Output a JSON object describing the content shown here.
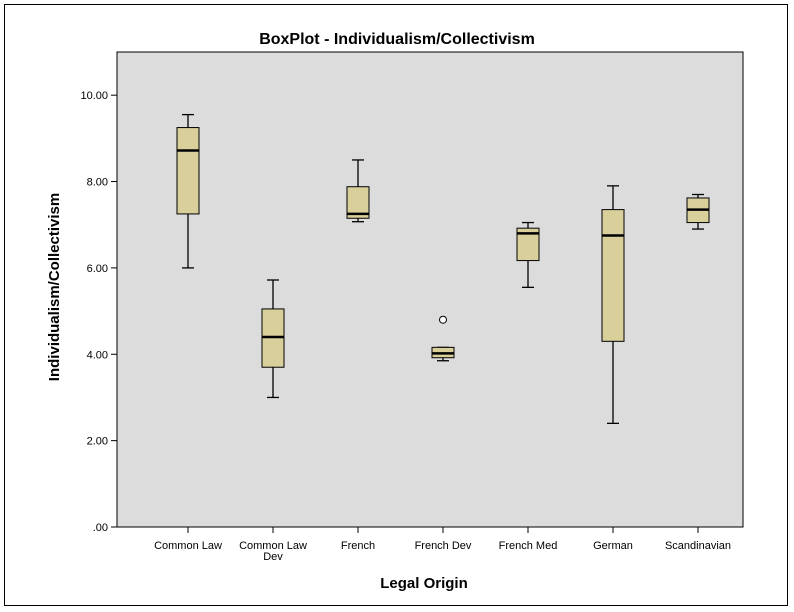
{
  "chart_data": {
    "type": "boxplot",
    "title": "BoxPlot - Individualism/Collectivism",
    "xlabel": "Legal Origin",
    "ylabel": "Individualism/Collectivism",
    "ylim": [
      0,
      11
    ],
    "yticks": [
      0,
      2,
      4,
      6,
      8,
      10
    ],
    "ytick_labels": [
      ".00",
      "2.00",
      "4.00",
      "6.00",
      "8.00",
      "10.00"
    ],
    "grid": false,
    "categories": [
      "Common Law",
      "Common Law Dev",
      "French",
      "French Dev",
      "French Med",
      "German",
      "Scandinavian"
    ],
    "category_label_lines": [
      [
        "Common Law"
      ],
      [
        "Common Law",
        "Dev"
      ],
      [
        "French"
      ],
      [
        "French Dev"
      ],
      [
        "French Med"
      ],
      [
        "German"
      ],
      [
        "Scandinavian"
      ]
    ],
    "boxes": [
      {
        "category": "Common Law",
        "min": 6.0,
        "q1": 7.25,
        "median": 8.72,
        "q3": 9.25,
        "max": 9.55,
        "outliers": []
      },
      {
        "category": "Common Law Dev",
        "min": 3.0,
        "q1": 3.7,
        "median": 4.4,
        "q3": 5.05,
        "max": 5.72,
        "outliers": []
      },
      {
        "category": "French",
        "min": 7.07,
        "q1": 7.15,
        "median": 7.25,
        "q3": 7.88,
        "max": 8.5,
        "outliers": []
      },
      {
        "category": "French Dev",
        "min": 3.85,
        "q1": 3.92,
        "median": 4.02,
        "q3": 4.16,
        "max": 4.16,
        "outliers": [
          4.8
        ]
      },
      {
        "category": "French Med",
        "min": 5.55,
        "q1": 6.17,
        "median": 6.8,
        "q3": 6.92,
        "max": 7.05,
        "outliers": []
      },
      {
        "category": "German",
        "min": 2.4,
        "q1": 4.3,
        "median": 6.75,
        "q3": 7.35,
        "max": 7.9,
        "outliers": []
      },
      {
        "category": "Scandinavian",
        "min": 6.9,
        "q1": 7.05,
        "median": 7.35,
        "q3": 7.62,
        "max": 7.7,
        "outliers": []
      }
    ],
    "colors": {
      "plot_background": "#dcdcdc",
      "box_fill": "#d8cf9b",
      "line": "#000000"
    }
  }
}
